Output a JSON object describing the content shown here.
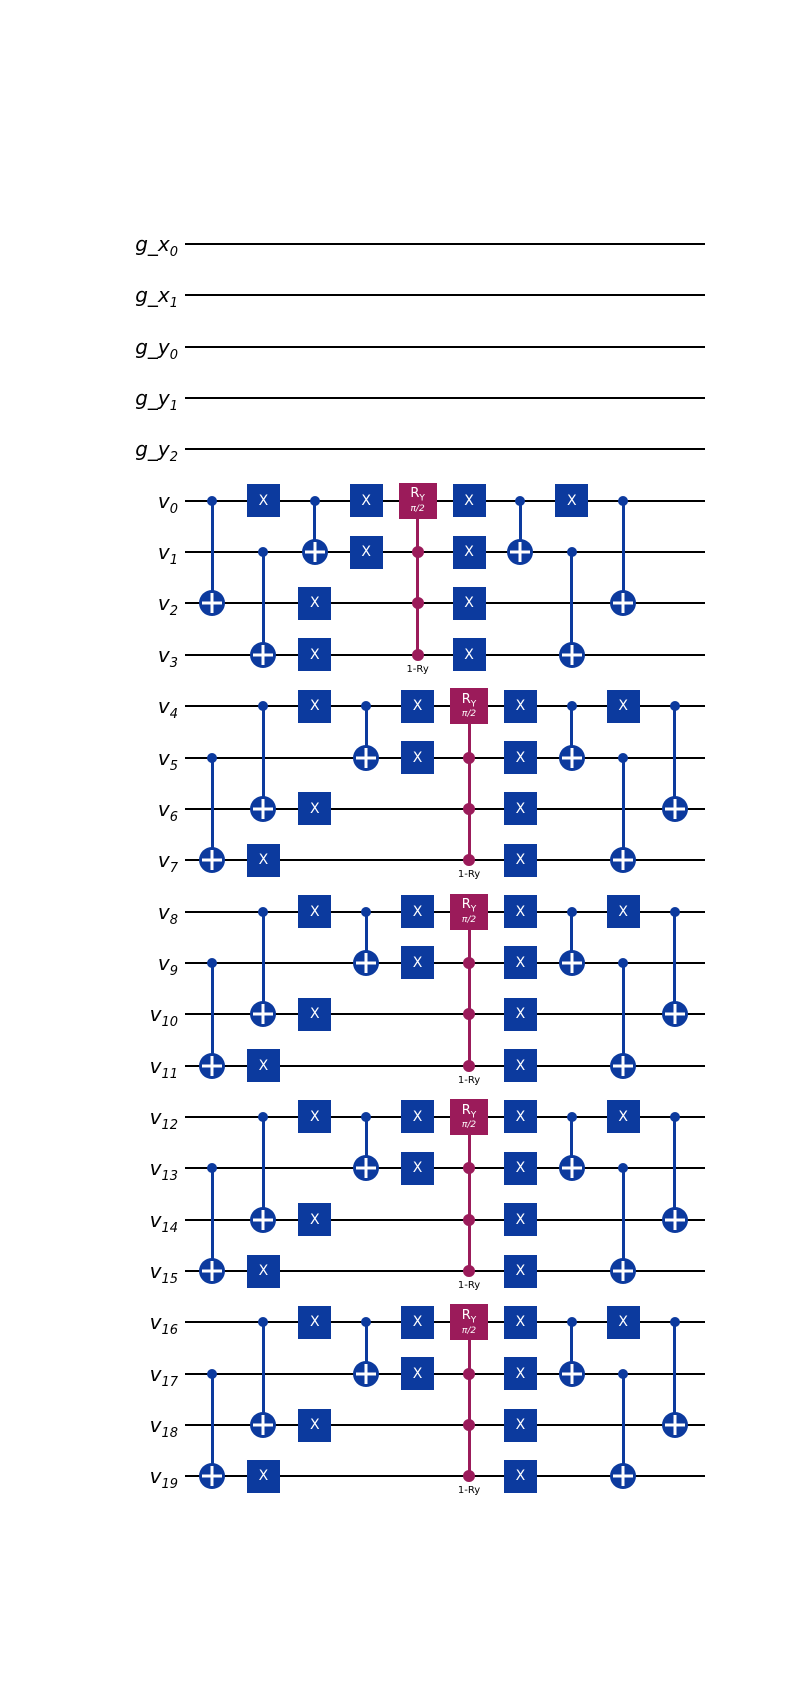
{
  "diagram": {
    "type": "quantum-circuit",
    "colors": {
      "gate_blue": "#0C3A9E",
      "gate_magenta": "#9B1B5A",
      "wire": "#000000",
      "background": "#FFFFFF"
    },
    "gate_labels": {
      "x": "X",
      "ry_main": "R",
      "ry_sub": "Y",
      "ry_param": "π/2",
      "cry_note": "1-Ry"
    },
    "layout": {
      "wire_x_start": 185,
      "wire_x_end": 705,
      "wire_y_start": 244,
      "wire_y_step": 51.35,
      "col_x_start": 212,
      "col_x_step": 51.4,
      "label_right_edge": 178
    },
    "wires": [
      {
        "id": "g_x0",
        "label": "g_x",
        "sub": "0"
      },
      {
        "id": "g_x1",
        "label": "g_x",
        "sub": "1"
      },
      {
        "id": "g_y0",
        "label": "g_y",
        "sub": "0"
      },
      {
        "id": "g_y1",
        "label": "g_y",
        "sub": "1"
      },
      {
        "id": "g_y2",
        "label": "g_y",
        "sub": "2"
      },
      {
        "id": "v0",
        "label": "v",
        "sub": "0"
      },
      {
        "id": "v1",
        "label": "v",
        "sub": "1"
      },
      {
        "id": "v2",
        "label": "v",
        "sub": "2"
      },
      {
        "id": "v3",
        "label": "v",
        "sub": "3"
      },
      {
        "id": "v4",
        "label": "v",
        "sub": "4"
      },
      {
        "id": "v5",
        "label": "v",
        "sub": "5"
      },
      {
        "id": "v6",
        "label": "v",
        "sub": "6"
      },
      {
        "id": "v7",
        "label": "v",
        "sub": "7"
      },
      {
        "id": "v8",
        "label": "v",
        "sub": "8"
      },
      {
        "id": "v9",
        "label": "v",
        "sub": "9"
      },
      {
        "id": "v10",
        "label": "v",
        "sub": "10"
      },
      {
        "id": "v11",
        "label": "v",
        "sub": "11"
      },
      {
        "id": "v12",
        "label": "v",
        "sub": "12"
      },
      {
        "id": "v13",
        "label": "v",
        "sub": "13"
      },
      {
        "id": "v14",
        "label": "v",
        "sub": "14"
      },
      {
        "id": "v15",
        "label": "v",
        "sub": "15"
      },
      {
        "id": "v16",
        "label": "v",
        "sub": "16"
      },
      {
        "id": "v17",
        "label": "v",
        "sub": "17"
      },
      {
        "id": "v18",
        "label": "v",
        "sub": "18"
      },
      {
        "id": "v19",
        "label": "v",
        "sub": "19"
      }
    ],
    "gates": [
      {
        "t": "cx",
        "ctrl": "v0",
        "tgt": "v2",
        "col": 1
      },
      {
        "t": "x",
        "w": "v0",
        "col": 2
      },
      {
        "t": "cx",
        "ctrl": "v1",
        "tgt": "v3",
        "col": 2
      },
      {
        "t": "cx",
        "ctrl": "v0",
        "tgt": "v1",
        "col": 3
      },
      {
        "t": "x",
        "w": "v2",
        "col": 3
      },
      {
        "t": "x",
        "w": "v3",
        "col": 3
      },
      {
        "t": "x",
        "w": "v0",
        "col": 4
      },
      {
        "t": "x",
        "w": "v1",
        "col": 4
      },
      {
        "t": "cry",
        "box": "v0",
        "dots": [
          "v1",
          "v2",
          "v3"
        ],
        "col": 5
      },
      {
        "t": "x",
        "w": "v0",
        "col": 6
      },
      {
        "t": "x",
        "w": "v1",
        "col": 6
      },
      {
        "t": "x",
        "w": "v2",
        "col": 6
      },
      {
        "t": "x",
        "w": "v3",
        "col": 6
      },
      {
        "t": "cx",
        "ctrl": "v0",
        "tgt": "v1",
        "col": 7
      },
      {
        "t": "x",
        "w": "v0",
        "col": 8
      },
      {
        "t": "cx",
        "ctrl": "v1",
        "tgt": "v3",
        "col": 8
      },
      {
        "t": "cx",
        "ctrl": "v0",
        "tgt": "v2",
        "col": 9
      },
      {
        "t": "cx",
        "ctrl": "v5",
        "tgt": "v7",
        "col": 1
      },
      {
        "t": "cx",
        "ctrl": "v4",
        "tgt": "v6",
        "col": 2
      },
      {
        "t": "x",
        "w": "v7",
        "col": 2
      },
      {
        "t": "x",
        "w": "v4",
        "col": 3
      },
      {
        "t": "x",
        "w": "v6",
        "col": 3
      },
      {
        "t": "cx",
        "ctrl": "v4",
        "tgt": "v5",
        "col": 4
      },
      {
        "t": "x",
        "w": "v4",
        "col": 5
      },
      {
        "t": "x",
        "w": "v5",
        "col": 5
      },
      {
        "t": "cry",
        "box": "v4",
        "dots": [
          "v5",
          "v6",
          "v7"
        ],
        "col": 6
      },
      {
        "t": "x",
        "w": "v4",
        "col": 7
      },
      {
        "t": "x",
        "w": "v5",
        "col": 7
      },
      {
        "t": "x",
        "w": "v6",
        "col": 7
      },
      {
        "t": "x",
        "w": "v7",
        "col": 7
      },
      {
        "t": "cx",
        "ctrl": "v4",
        "tgt": "v5",
        "col": 8
      },
      {
        "t": "x",
        "w": "v4",
        "col": 9
      },
      {
        "t": "cx",
        "ctrl": "v5",
        "tgt": "v7",
        "col": 9
      },
      {
        "t": "cx",
        "ctrl": "v4",
        "tgt": "v6",
        "col": 10
      },
      {
        "t": "cx",
        "ctrl": "v9",
        "tgt": "v11",
        "col": 1
      },
      {
        "t": "cx",
        "ctrl": "v8",
        "tgt": "v10",
        "col": 2
      },
      {
        "t": "x",
        "w": "v11",
        "col": 2
      },
      {
        "t": "x",
        "w": "v8",
        "col": 3
      },
      {
        "t": "x",
        "w": "v10",
        "col": 3
      },
      {
        "t": "cx",
        "ctrl": "v8",
        "tgt": "v9",
        "col": 4
      },
      {
        "t": "x",
        "w": "v8",
        "col": 5
      },
      {
        "t": "x",
        "w": "v9",
        "col": 5
      },
      {
        "t": "cry",
        "box": "v8",
        "dots": [
          "v9",
          "v10",
          "v11"
        ],
        "col": 6
      },
      {
        "t": "x",
        "w": "v8",
        "col": 7
      },
      {
        "t": "x",
        "w": "v9",
        "col": 7
      },
      {
        "t": "x",
        "w": "v10",
        "col": 7
      },
      {
        "t": "x",
        "w": "v11",
        "col": 7
      },
      {
        "t": "cx",
        "ctrl": "v8",
        "tgt": "v9",
        "col": 8
      },
      {
        "t": "x",
        "w": "v8",
        "col": 9
      },
      {
        "t": "cx",
        "ctrl": "v9",
        "tgt": "v11",
        "col": 9
      },
      {
        "t": "cx",
        "ctrl": "v8",
        "tgt": "v10",
        "col": 10
      },
      {
        "t": "cx",
        "ctrl": "v13",
        "tgt": "v15",
        "col": 1
      },
      {
        "t": "cx",
        "ctrl": "v12",
        "tgt": "v14",
        "col": 2
      },
      {
        "t": "x",
        "w": "v15",
        "col": 2
      },
      {
        "t": "x",
        "w": "v12",
        "col": 3
      },
      {
        "t": "x",
        "w": "v14",
        "col": 3
      },
      {
        "t": "cx",
        "ctrl": "v12",
        "tgt": "v13",
        "col": 4
      },
      {
        "t": "x",
        "w": "v12",
        "col": 5
      },
      {
        "t": "x",
        "w": "v13",
        "col": 5
      },
      {
        "t": "cry",
        "box": "v12",
        "dots": [
          "v13",
          "v14",
          "v15"
        ],
        "col": 6
      },
      {
        "t": "x",
        "w": "v12",
        "col": 7
      },
      {
        "t": "x",
        "w": "v13",
        "col": 7
      },
      {
        "t": "x",
        "w": "v14",
        "col": 7
      },
      {
        "t": "x",
        "w": "v15",
        "col": 7
      },
      {
        "t": "cx",
        "ctrl": "v12",
        "tgt": "v13",
        "col": 8
      },
      {
        "t": "x",
        "w": "v12",
        "col": 9
      },
      {
        "t": "cx",
        "ctrl": "v13",
        "tgt": "v15",
        "col": 9
      },
      {
        "t": "cx",
        "ctrl": "v12",
        "tgt": "v14",
        "col": 10
      },
      {
        "t": "cx",
        "ctrl": "v17",
        "tgt": "v19",
        "col": 1
      },
      {
        "t": "cx",
        "ctrl": "v16",
        "tgt": "v18",
        "col": 2
      },
      {
        "t": "x",
        "w": "v19",
        "col": 2
      },
      {
        "t": "x",
        "w": "v16",
        "col": 3
      },
      {
        "t": "x",
        "w": "v18",
        "col": 3
      },
      {
        "t": "cx",
        "ctrl": "v16",
        "tgt": "v17",
        "col": 4
      },
      {
        "t": "x",
        "w": "v16",
        "col": 5
      },
      {
        "t": "x",
        "w": "v17",
        "col": 5
      },
      {
        "t": "cry",
        "box": "v16",
        "dots": [
          "v17",
          "v18",
          "v19"
        ],
        "col": 6
      },
      {
        "t": "x",
        "w": "v16",
        "col": 7
      },
      {
        "t": "x",
        "w": "v17",
        "col": 7
      },
      {
        "t": "x",
        "w": "v18",
        "col": 7
      },
      {
        "t": "x",
        "w": "v19",
        "col": 7
      },
      {
        "t": "cx",
        "ctrl": "v16",
        "tgt": "v17",
        "col": 8
      },
      {
        "t": "x",
        "w": "v16",
        "col": 9
      },
      {
        "t": "cx",
        "ctrl": "v17",
        "tgt": "v19",
        "col": 9
      },
      {
        "t": "cx",
        "ctrl": "v16",
        "tgt": "v18",
        "col": 10
      }
    ]
  }
}
